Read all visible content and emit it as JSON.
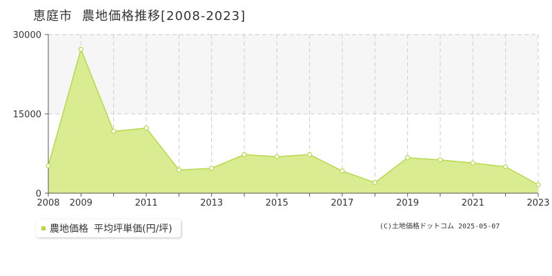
{
  "title": {
    "location": "恵庭市",
    "main": "農地価格推移[2008-2023]"
  },
  "legend": {
    "label": "農地価格",
    "unit": "平均坪単価(円/坪)"
  },
  "credit": "(C)土地価格ドットコム 2025-05-07",
  "colors": {
    "fill": "#d9ec92",
    "line": "#b5d94a",
    "band": "#f6f6f6",
    "grid": "#cccccc",
    "axis": "#555555"
  },
  "chart_data": {
    "type": "area",
    "x": [
      2008,
      2009,
      2010,
      2011,
      2012,
      2013,
      2014,
      2015,
      2016,
      2017,
      2018,
      2019,
      2020,
      2021,
      2022,
      2023
    ],
    "series": [
      {
        "name": "農地価格",
        "values": [
          5200,
          27200,
          11700,
          12300,
          4400,
          4700,
          7300,
          6900,
          7300,
          4200,
          2000,
          6700,
          6300,
          5700,
          5000,
          1600
        ]
      }
    ],
    "ylim": [
      0,
      30000
    ],
    "yticks": [
      0,
      15000,
      30000
    ],
    "xticks": [
      2008,
      2009,
      2011,
      2013,
      2015,
      2017,
      2019,
      2021,
      2023
    ],
    "grid": true
  }
}
